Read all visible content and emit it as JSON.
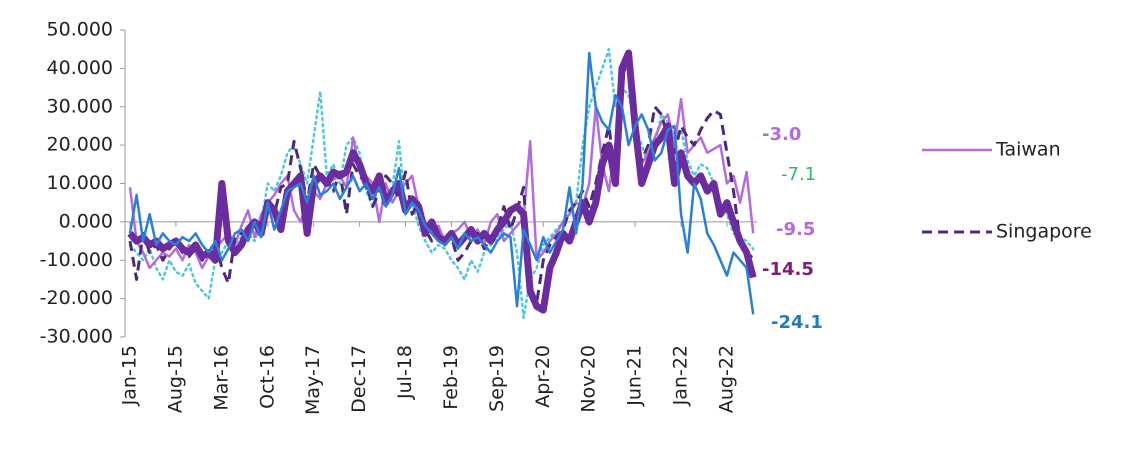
{
  "chart_data": {
    "type": "line",
    "categories": [
      "Jan-15",
      null,
      null,
      null,
      null,
      null,
      null,
      "Aug-15",
      null,
      null,
      null,
      null,
      null,
      null,
      "Mar-16",
      null,
      null,
      null,
      null,
      null,
      null,
      "Oct-16",
      null,
      null,
      null,
      null,
      null,
      null,
      "May-17",
      null,
      null,
      null,
      null,
      null,
      null,
      "Dec-17",
      null,
      null,
      null,
      null,
      null,
      null,
      "Jul-18",
      null,
      null,
      null,
      null,
      null,
      null,
      "Feb-19",
      null,
      null,
      null,
      null,
      null,
      null,
      "Sep-19",
      null,
      null,
      null,
      null,
      null,
      null,
      "Apr-20",
      null,
      null,
      null,
      null,
      null,
      null,
      "Nov-20",
      null,
      null,
      null,
      null,
      null,
      null,
      "Jun-21",
      null,
      null,
      null,
      null,
      null,
      null,
      "Jan-22",
      null,
      null,
      null,
      null,
      null,
      null,
      "Aug-22",
      null,
      null,
      null,
      null
    ],
    "ylim": [
      -30,
      50
    ],
    "yticks": [
      {
        "value": -30,
        "label": "-30.000"
      },
      {
        "value": -20,
        "label": "-20.000"
      },
      {
        "value": -10,
        "label": "-10.000"
      },
      {
        "value": 0,
        "label": "0.000"
      },
      {
        "value": 10,
        "label": "10.000"
      },
      {
        "value": 20,
        "label": "20.000"
      },
      {
        "value": 30,
        "label": "30.000"
      },
      {
        "value": 40,
        "label": "40.000"
      },
      {
        "value": 50,
        "label": "50.000"
      }
    ],
    "series": [
      {
        "color": "#4fc9d9",
        "style": "dotted",
        "width": 2.5,
        "end_label": "-7.1",
        "label_color": "#2eb86b",
        "values": [
          -6,
          -8,
          -10,
          -7,
          -12,
          -15,
          -10,
          -13,
          -14,
          -11,
          -16,
          -18,
          -20,
          -10,
          -8,
          -5,
          -6,
          -4,
          -3,
          -5,
          0,
          10,
          8,
          12,
          18,
          20,
          15,
          10,
          22,
          34,
          12,
          15,
          10,
          20,
          22,
          18,
          8,
          4,
          10,
          6,
          9,
          21,
          3,
          5,
          -1,
          -5,
          -8,
          -6,
          -7,
          -10,
          -12,
          -15,
          -10,
          -13,
          -8,
          -6,
          -4,
          -2,
          0,
          -8,
          -25,
          -15,
          -12,
          -6,
          -4,
          -2,
          0,
          3,
          5,
          20,
          30,
          35,
          40,
          45,
          30,
          35,
          33,
          25,
          20,
          15,
          20,
          28,
          26,
          22,
          24,
          16,
          12,
          15,
          14,
          10,
          5,
          2,
          -3,
          -4,
          -5,
          -7.1
        ]
      },
      {
        "name": "Taiwan",
        "color": "#b36be0",
        "style": "solid",
        "width": 2.5,
        "end_label": "-3.0",
        "label_color": "#b36be0",
        "values": [
          9,
          -5,
          -8,
          -12,
          -10,
          -8,
          -9,
          -7,
          -10,
          -6,
          -8,
          -12,
          -9,
          -7,
          -5,
          -3,
          -6,
          -1,
          3,
          -4,
          2,
          5,
          7,
          10,
          12,
          3,
          0,
          5,
          8,
          6,
          10,
          11,
          12,
          9,
          22,
          14,
          12,
          10,
          0,
          10,
          5,
          8,
          10,
          12,
          4,
          0,
          -3,
          -1,
          -5,
          -3,
          -2,
          0,
          -4,
          -2,
          -6,
          0,
          2,
          -5,
          -3,
          -1,
          1,
          21,
          -10,
          -8,
          -5,
          -3,
          0,
          2,
          5,
          4,
          10,
          30,
          15,
          8,
          20,
          38,
          42,
          30,
          15,
          18,
          22,
          26,
          28,
          20,
          32,
          18,
          20,
          22,
          18,
          19,
          20,
          10,
          12,
          5,
          13,
          -3.0
        ]
      },
      {
        "name": "Singapore",
        "color": "#4b2a7a",
        "style": "dashed",
        "width": 3,
        "end_label": "-9.5",
        "label_color": "#b36be0",
        "values": [
          -5,
          -15,
          -3,
          -8,
          -6,
          -10,
          -7,
          -5,
          -8,
          -9,
          -7,
          -10,
          -8,
          -5,
          -12,
          -16,
          -4,
          -3,
          -2,
          -1,
          0,
          5,
          2,
          9,
          10,
          21,
          14,
          5,
          15,
          12,
          11,
          8,
          13,
          2,
          15,
          12,
          10,
          4,
          8,
          12,
          10,
          6,
          13,
          2,
          5,
          -2,
          -5,
          -3,
          -6,
          -4,
          -10,
          -8,
          -5,
          -3,
          -7,
          -4,
          -2,
          4,
          -2,
          3,
          9,
          -18,
          -21,
          -10,
          -6,
          -4,
          -2,
          3,
          5,
          8,
          4,
          10,
          18,
          25,
          12,
          38,
          42,
          22,
          16,
          20,
          30,
          28,
          22,
          18,
          25,
          22,
          20,
          24,
          27,
          29,
          28,
          18,
          8,
          -5,
          -8,
          -9.5
        ]
      },
      {
        "color": "#6a2c9e",
        "style": "solid",
        "width": 7,
        "end_label": "-14.5",
        "label_color": "#7a1e7a",
        "values": [
          -3,
          -5,
          -4,
          -6,
          -5,
          -7,
          -6,
          -5,
          -7,
          -8,
          -6,
          -9,
          -8,
          -10,
          10,
          -5,
          -8,
          -6,
          -2,
          0,
          -3,
          5,
          3,
          -2,
          8,
          10,
          12,
          -3,
          10,
          12,
          10,
          13,
          12,
          13,
          18,
          15,
          10,
          8,
          12,
          5,
          8,
          10,
          3,
          6,
          4,
          -3,
          0,
          -4,
          -5,
          -3,
          -6,
          -4,
          -2,
          -5,
          -3,
          -5,
          -2,
          0,
          3,
          4,
          2,
          -18,
          -22,
          -23,
          -12,
          -8,
          -3,
          -5,
          0,
          5,
          0,
          5,
          15,
          20,
          10,
          40,
          44,
          25,
          10,
          15,
          20,
          22,
          25,
          10,
          18,
          12,
          10,
          12,
          8,
          10,
          2,
          5,
          0,
          -5,
          -8,
          -14.5
        ]
      },
      {
        "color": "#2a7fd8",
        "style": "solid",
        "width": 2.5,
        "end_label": "-24.1",
        "label_color": "#1f7ac8",
        "values": [
          -3,
          7,
          -5,
          2,
          -6,
          -3,
          -5,
          -6,
          -4,
          -5,
          -3,
          -6,
          -8,
          -5,
          -10,
          -7,
          -3,
          -2,
          -5,
          0,
          -4,
          5,
          -2,
          3,
          8,
          9,
          10,
          5,
          12,
          7,
          8,
          10,
          6,
          9,
          12,
          8,
          10,
          6,
          9,
          4,
          7,
          14,
          2,
          5,
          3,
          -1,
          -3,
          -5,
          -6,
          -4,
          -7,
          -3,
          -5,
          -4,
          -6,
          -8,
          -5,
          -3,
          -4,
          -22,
          -2,
          -6,
          -10,
          -4,
          -8,
          -5,
          -2,
          9,
          -3,
          10,
          44,
          30,
          26,
          24,
          33,
          30,
          20,
          25,
          28,
          24,
          16,
          18,
          24,
          25,
          2,
          -8,
          10,
          6,
          -3,
          -6,
          -10,
          -14,
          -8,
          -10,
          -12,
          -24.1
        ]
      }
    ]
  }
}
